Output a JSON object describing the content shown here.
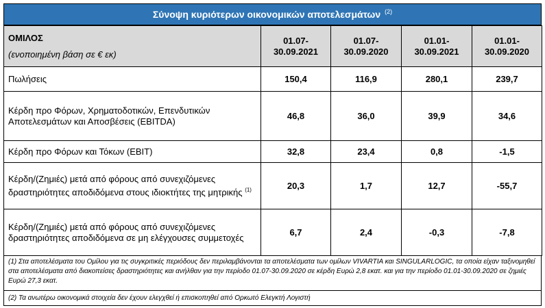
{
  "title": "Σύνοψη κυριότερων οικονομικών αποτελεσμάτων",
  "title_note": "(2)",
  "group": {
    "name": "ΟΜΙΛΟΣ",
    "subtitle": "(ενοποιημένη βάση σε € εκ)"
  },
  "columns": [
    {
      "line1": "01.07-",
      "line2": "30.09.2021"
    },
    {
      "line1": "01.07-",
      "line2": "30.09.2020"
    },
    {
      "line1": "01.01-",
      "line2": "30.09.2021"
    },
    {
      "line1": "01.01-",
      "line2": "30.09.2020"
    }
  ],
  "rows": [
    {
      "label": "Πωλήσεις",
      "note": "",
      "values": [
        "150,4",
        "116,9",
        "280,1",
        "239,7"
      ]
    },
    {
      "label": "Κέρδη προ Φόρων, Χρηματοδοτικών, Επενδυτικών Αποτελεσμάτων και Αποσβέσεις (EBITDA)",
      "note": "",
      "values": [
        "46,8",
        "36,0",
        "39,9",
        "34,6"
      ]
    },
    {
      "label": "Κέρδη προ Φόρων και Τόκων (EBIT)",
      "note": "",
      "values": [
        "32,8",
        "23,4",
        "0,8",
        "-1,5"
      ]
    },
    {
      "label": "Κέρδη/(Ζημιές) μετά από φόρους από συνεχιζόμενες δραστηριότητες αποδιδόμενα στους ιδιοκτήτες της μητρικής",
      "note": "(1)",
      "values": [
        "20,3",
        "1,7",
        "12,7",
        "-55,7"
      ]
    },
    {
      "label": "Κέρδη/(Ζημιές) μετά από φόρους από συνεχιζόμενες δραστηριότητες αποδιδόμενα σε μη ελέγχουσες συμμετοχές",
      "note": "",
      "values": [
        "6,7",
        "2,4",
        "-0,3",
        "-7,8"
      ]
    }
  ],
  "notes": [
    "(1) Στα αποτελέσματα του Ομίλου για τις συγκριτικές περιόδους δεν περιλαμβάνονται τα αποτελέσματα των ομίλων VIVARTIA και SINGULARLOGIC, τα οποία είχαν ταξινομηθεί στα αποτελέσματα από διακοπείσες δραστηριότητες και ανήλθαν για την περίοδο 01.07-30.09.2020 σε κέρδη Ευρώ 2,8 εκατ. και για την περίοδο 01.01-30.09.2020 σε ζημιές Ευρώ 27,3 εκατ.",
    "(2) Τα ανωτέρω οικονομικά στοιχεία δεν έχουν ελεγχθεί ή επισκοπηθεί από Ορκωτό Ελεγκτή Λογιστή"
  ]
}
